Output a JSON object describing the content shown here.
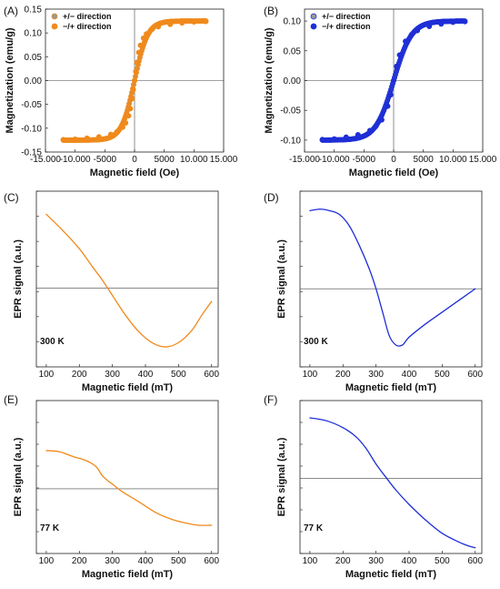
{
  "chart_data": [
    {
      "panel": "(A)",
      "type": "scatter",
      "xlabel": "Magnetic field (Oe)",
      "ylabel": "Magnetization (emu/g)",
      "xlim": [
        -15000,
        15000
      ],
      "ylim": [
        -0.15,
        0.15
      ],
      "x_ticks": [
        "-15.000",
        "-10.000",
        "-5000",
        "0",
        "5000",
        "10.000",
        "15.000"
      ],
      "y_ticks": [
        "-0.15",
        "-0.10",
        "-0.05",
        "0.00",
        "0.05",
        "0.10",
        "0.15"
      ],
      "legend": [
        "+/− direction",
        "−/+ direction"
      ],
      "legend_position": "top-left",
      "color": "#f08a1c",
      "saturation": 0.125,
      "shape": 2200,
      "series": [
        {
          "name": "+/− direction",
          "x": [
            12000,
            10000,
            8000,
            6000,
            4000,
            3000,
            2000,
            1500,
            1000,
            700,
            400,
            200,
            0,
            -200,
            -400,
            -700,
            -1000,
            -1500,
            -2000,
            -3000,
            -4000,
            -6000,
            -8000,
            -10000,
            -12000
          ],
          "y": [
            0.124,
            0.123,
            0.121,
            0.118,
            0.113,
            0.108,
            0.098,
            0.089,
            0.074,
            0.059,
            0.038,
            0.019,
            0.0,
            -0.019,
            -0.038,
            -0.059,
            -0.074,
            -0.089,
            -0.098,
            -0.108,
            -0.113,
            -0.118,
            -0.121,
            -0.123,
            -0.124
          ]
        },
        {
          "name": "−/+ direction",
          "x": [
            -12000,
            -10000,
            -8000,
            -6000,
            -4000,
            -3000,
            -2000,
            -1500,
            -1000,
            -700,
            -400,
            -200,
            0,
            200,
            400,
            700,
            1000,
            1500,
            2000,
            3000,
            4000,
            6000,
            8000,
            10000,
            12000
          ],
          "y": [
            -0.124,
            -0.123,
            -0.121,
            -0.118,
            -0.113,
            -0.108,
            -0.098,
            -0.089,
            -0.074,
            -0.059,
            -0.038,
            -0.019,
            0.0,
            0.019,
            0.038,
            0.059,
            0.074,
            0.089,
            0.098,
            0.108,
            0.113,
            0.118,
            0.121,
            0.123,
            0.124
          ]
        }
      ]
    },
    {
      "panel": "(B)",
      "type": "scatter",
      "xlabel": "Magnetic field (Oe)",
      "ylabel": "Magnetization (emu/g)",
      "xlim": [
        -15000,
        15000
      ],
      "ylim": [
        -0.12,
        0.12
      ],
      "x_ticks": [
        "-15.000",
        "-10.000",
        "-5000",
        "0",
        "5000",
        "10.000",
        "15.000"
      ],
      "y_ticks": [
        "-0.10",
        "-0.05",
        "0.00",
        "0.05",
        "0.10"
      ],
      "legend": [
        "+/− direction",
        "−/+ direction"
      ],
      "legend_position": "top-left",
      "color": "#1f2fd6",
      "saturation": 0.1,
      "shape": 3000,
      "series": [
        {
          "name": "+/− direction",
          "x": [
            12000,
            10000,
            8000,
            6000,
            4000,
            3000,
            2000,
            1000,
            500,
            0,
            -500,
            -1000,
            -2000,
            -3000,
            -4000,
            -6000,
            -8000,
            -10000,
            -12000
          ],
          "y": [
            0.099,
            0.098,
            0.095,
            0.091,
            0.084,
            0.077,
            0.066,
            0.043,
            0.024,
            0.0,
            -0.024,
            -0.043,
            -0.066,
            -0.077,
            -0.084,
            -0.091,
            -0.095,
            -0.098,
            -0.099
          ]
        },
        {
          "name": "−/+ direction",
          "x": [
            -12000,
            -10000,
            -8000,
            -6000,
            -4000,
            -3000,
            -2000,
            -1000,
            -500,
            0,
            500,
            1000,
            2000,
            3000,
            4000,
            6000,
            8000,
            10000,
            12000
          ],
          "y": [
            -0.099,
            -0.098,
            -0.095,
            -0.091,
            -0.084,
            -0.077,
            -0.066,
            -0.043,
            -0.024,
            0.0,
            0.024,
            0.043,
            0.066,
            0.077,
            0.084,
            0.091,
            0.095,
            0.098,
            0.099
          ]
        }
      ]
    },
    {
      "panel": "(C)",
      "type": "line",
      "xlabel": "Magnetic field (mT)",
      "ylabel": "EPR signal (a.u.)",
      "annotation": "300 K",
      "xlim": [
        70,
        620
      ],
      "ylim": [
        -1.3,
        1.6
      ],
      "x_ticks": [
        "100",
        "200",
        "300",
        "400",
        "500",
        "600"
      ],
      "color": "#f08a1c",
      "x": [
        100,
        150,
        200,
        240,
        270,
        300,
        340,
        380,
        420,
        460,
        500,
        540,
        570,
        600
      ],
      "y": [
        1.22,
        0.95,
        0.65,
        0.35,
        0.13,
        -0.12,
        -0.45,
        -0.72,
        -0.9,
        -0.97,
        -0.9,
        -0.7,
        -0.45,
        -0.22
      ]
    },
    {
      "panel": "(D)",
      "type": "line",
      "xlabel": "Magnetic field (mT)",
      "ylabel": "EPR signal (a.u.)",
      "annotation": "300 K",
      "xlim": [
        70,
        620
      ],
      "ylim": [
        -1.0,
        1.25
      ],
      "x_ticks": [
        "100",
        "200",
        "300",
        "400",
        "500",
        "600"
      ],
      "color": "#1f2fd6",
      "x": [
        100,
        130,
        160,
        190,
        220,
        250,
        280,
        300,
        320,
        340,
        360,
        380,
        400,
        450,
        500,
        550,
        600
      ],
      "y": [
        1.0,
        1.02,
        1.0,
        0.95,
        0.8,
        0.55,
        0.25,
        0.0,
        -0.3,
        -0.6,
        -0.72,
        -0.72,
        -0.62,
        -0.45,
        -0.3,
        -0.15,
        0.0
      ]
    },
    {
      "panel": "(E)",
      "type": "line",
      "xlabel": "Magnetic field (mT)",
      "ylabel": "EPR signal (a.u.)",
      "annotation": "77 K",
      "xlim": [
        70,
        620
      ],
      "ylim": [
        -1.1,
        1.5
      ],
      "x_ticks": [
        "100",
        "200",
        "300",
        "400",
        "500",
        "600"
      ],
      "color": "#f08a1c",
      "x": [
        100,
        140,
        180,
        220,
        250,
        270,
        290,
        300,
        330,
        380,
        430,
        480,
        520,
        560,
        600
      ],
      "y": [
        0.65,
        0.63,
        0.55,
        0.48,
        0.38,
        0.22,
        0.12,
        0.08,
        -0.05,
        -0.22,
        -0.4,
        -0.52,
        -0.58,
        -0.62,
        -0.62
      ]
    },
    {
      "panel": "(F)",
      "type": "line",
      "xlabel": "Magnetic field (mT)",
      "ylabel": "EPR signal (a.u.)",
      "annotation": "77 K",
      "xlim": [
        70,
        620
      ],
      "ylim": [
        -1.3,
        1.35
      ],
      "x_ticks": [
        "100",
        "200",
        "300",
        "400",
        "500",
        "600"
      ],
      "color": "#1f2fd6",
      "x": [
        100,
        150,
        200,
        240,
        270,
        300,
        330,
        360,
        400,
        450,
        500,
        550,
        580,
        600
      ],
      "y": [
        1.05,
        1.0,
        0.88,
        0.72,
        0.52,
        0.25,
        0.02,
        -0.2,
        -0.45,
        -0.72,
        -0.95,
        -1.1,
        -1.17,
        -1.2
      ]
    }
  ]
}
